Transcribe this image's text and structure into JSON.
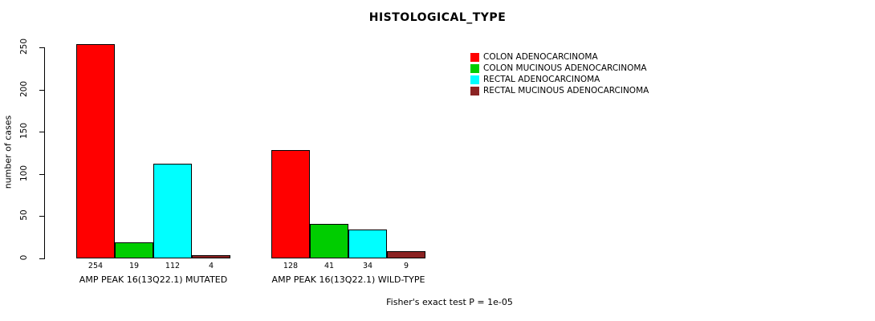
{
  "chart_data": {
    "type": "bar",
    "title": "HISTOLOGICAL_TYPE",
    "ylabel": "number of cases",
    "ylim": [
      0,
      250
    ],
    "yticks": [
      0,
      50,
      100,
      150,
      200,
      250
    ],
    "grid": false,
    "legend_position": "right",
    "categories": [
      "AMP PEAK 16(13Q22.1) MUTATED",
      "AMP PEAK 16(13Q22.1) WILD-TYPE"
    ],
    "series": [
      {
        "name": "COLON ADENOCARCINOMA",
        "color": "#FF0000",
        "values": [
          254,
          128
        ]
      },
      {
        "name": "COLON MUCINOUS ADENOCARCINOMA",
        "color": "#00CD00",
        "values": [
          19,
          41
        ]
      },
      {
        "name": "RECTAL ADENOCARCINOMA",
        "color": "#00FFFF",
        "values": [
          112,
          34
        ]
      },
      {
        "name": "RECTAL MUCINOUS ADENOCARCINOMA",
        "color": "#8B2323",
        "values": [
          4,
          9
        ]
      }
    ],
    "groups": [
      {
        "label": "AMP PEAK 16(13Q22.1) MUTATED",
        "values": [
          254,
          19,
          112,
          4
        ]
      },
      {
        "label": "AMP PEAK 16(13Q22.1) WILD-TYPE",
        "values": [
          128,
          41,
          34,
          9
        ]
      }
    ],
    "footnote": "Fisher's exact test P = 1e-05"
  }
}
